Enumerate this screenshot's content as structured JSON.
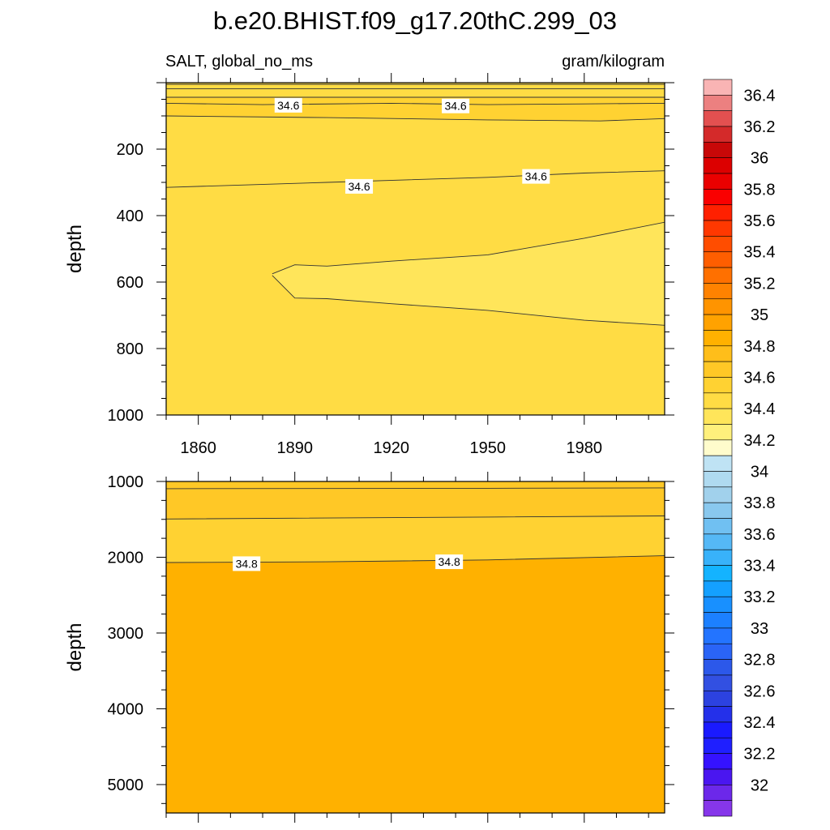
{
  "title": "b.e20.BHIST.f09_g17.20thC.299_03",
  "left_string": "SALT, global_no_ms",
  "right_string": "gram/kilogram",
  "chart_data": [
    {
      "type": "heatmap",
      "panel": "upper",
      "ylabel": "depth",
      "xlabel": "",
      "x_ticks": [
        1860,
        1890,
        1920,
        1950,
        1980
      ],
      "xlim": [
        1850,
        2005
      ],
      "y_ticks": [
        200,
        400,
        600,
        800,
        1000
      ],
      "ylim": [
        0,
        1000
      ],
      "y_inverted": true,
      "bands": [
        {
          "z": 34.45,
          "x": [
            1850,
            2005
          ],
          "y_top": [
            0,
            0
          ],
          "y_bot": [
            1000,
            1000
          ]
        },
        {
          "z": 34.5,
          "x": [
            1850,
            2005
          ],
          "y_top": [
            0,
            0
          ],
          "y_bot": [
            315,
            265
          ]
        },
        {
          "z": 34.6,
          "x": [
            1850,
            1900,
            1950,
            1985,
            2005
          ],
          "y_top": [
            0,
            0,
            0,
            0,
            0
          ],
          "y_bot": [
            100,
            105,
            112,
            115,
            108
          ]
        },
        {
          "z": 34.5,
          "x": [
            1850,
            2005
          ],
          "y_top": [
            0,
            0
          ],
          "y_bot": [
            44,
            44
          ]
        },
        {
          "z": 34.35,
          "x": [
            1883,
            1890,
            1900,
            1920,
            1950,
            1980,
            2005
          ],
          "y_top": [
            575,
            548,
            552,
            537,
            518,
            468,
            420
          ],
          "y_bot": [
            580,
            648,
            650,
            665,
            685,
            715,
            730
          ]
        }
      ],
      "contours": [
        {
          "level": 34.5,
          "x": [
            1850,
            2005
          ],
          "y": [
            5,
            5
          ]
        },
        {
          "level": 34.5,
          "x": [
            1850,
            2005
          ],
          "y": [
            18,
            18
          ]
        },
        {
          "level": 34.6,
          "x": [
            1850,
            2005
          ],
          "y": [
            44,
            44
          ]
        },
        {
          "level": 34.6,
          "x": [
            1850,
            1880,
            1920,
            1950,
            1980,
            2005
          ],
          "y": [
            62,
            66,
            62,
            66,
            64,
            62
          ]
        },
        {
          "level": 34.6,
          "x": [
            1850,
            1900,
            1950,
            1985,
            2005
          ],
          "y": [
            100,
            105,
            112,
            115,
            108
          ]
        },
        {
          "level": 34.6,
          "x": [
            1850,
            1900,
            1950,
            1980,
            2005
          ],
          "y": [
            315,
            300,
            285,
            272,
            265
          ]
        },
        {
          "level": 34.4,
          "x": [
            1883,
            1890,
            1900,
            1920,
            1950,
            1980,
            2005,
            2005,
            1980,
            1950,
            1920,
            1900,
            1890,
            1883
          ],
          "y": [
            575,
            548,
            552,
            537,
            518,
            468,
            420,
            730,
            715,
            685,
            665,
            650,
            648,
            580
          ]
        }
      ],
      "contour_labels": [
        {
          "text": "34.6",
          "x": 1888,
          "y": 68
        },
        {
          "text": "34.6",
          "x": 1940,
          "y": 70
        },
        {
          "text": "34.6",
          "x": 1910,
          "y": 312
        },
        {
          "text": "34.6",
          "x": 1965,
          "y": 282
        }
      ]
    },
    {
      "type": "heatmap",
      "panel": "lower",
      "ylabel": "depth",
      "xlabel": "",
      "x_ticks": [
        1860,
        1890,
        1920,
        1950,
        1980
      ],
      "xlim": [
        1850,
        2005
      ],
      "y_ticks": [
        1000,
        2000,
        3000,
        4000,
        5000
      ],
      "ylim": [
        1000,
        5375
      ],
      "y_inverted": true,
      "bands": [
        {
          "z": 34.55,
          "x": [
            1850,
            2005
          ],
          "y_top": [
            1000,
            1000
          ],
          "y_bot": [
            5375,
            5375
          ]
        },
        {
          "z": 34.65,
          "x": [
            1850,
            1950,
            2005
          ],
          "y_top": [
            1000,
            1000,
            1000
          ],
          "y_bot": [
            1495,
            1470,
            1455
          ]
        },
        {
          "z": 34.85,
          "x": [
            1850,
            1900,
            1950,
            2005
          ],
          "y_top": [
            2070,
            2060,
            2035,
            1980
          ],
          "y_bot": [
            5375,
            5375,
            5375,
            5375
          ]
        }
      ],
      "contours": [
        {
          "level": 34.6,
          "x": [
            1850,
            1950,
            2005
          ],
          "y": [
            1095,
            1090,
            1085
          ]
        },
        {
          "level": 34.7,
          "x": [
            1850,
            1950,
            2005
          ],
          "y": [
            1495,
            1470,
            1455
          ]
        },
        {
          "level": 34.8,
          "x": [
            1850,
            1900,
            1950,
            2005
          ],
          "y": [
            2070,
            2060,
            2035,
            1980
          ]
        }
      ],
      "contour_labels": [
        {
          "text": "34.8",
          "x": 1875,
          "y": 2085
        },
        {
          "text": "34.8",
          "x": 1938,
          "y": 2060
        }
      ]
    }
  ],
  "colorbar": {
    "labels": [
      "36.4",
      "36.2",
      "36",
      "35.8",
      "35.6",
      "35.4",
      "35.2",
      "35",
      "34.8",
      "34.6",
      "34.4",
      "34.2",
      "34",
      "33.8",
      "33.6",
      "33.4",
      "33.2",
      "33",
      "32.8",
      "32.6",
      "32.4",
      "32.2",
      "32"
    ],
    "levels": [
      36.5,
      36.4,
      36.3,
      36.2,
      36.1,
      36.0,
      35.9,
      35.8,
      35.7,
      35.6,
      35.5,
      35.4,
      35.3,
      35.2,
      35.1,
      35.0,
      34.9,
      34.8,
      34.7,
      34.6,
      34.5,
      34.4,
      34.3,
      34.2,
      34.1,
      34.0,
      33.9,
      33.8,
      33.7,
      33.6,
      33.5,
      33.4,
      33.3,
      33.2,
      33.1,
      33.0,
      32.9,
      32.8,
      32.7,
      32.6,
      32.5,
      32.4,
      32.3,
      32.2,
      32.1,
      32.0,
      31.9
    ],
    "colors": [
      "#f9b4b4",
      "#ec8080",
      "#e35050",
      "#d42a2a",
      "#c80808",
      "#dc0000",
      "#ea0000",
      "#fa0000",
      "#ff2000",
      "#ff3800",
      "#ff4d00",
      "#ff5e00",
      "#ff7000",
      "#ff8200",
      "#ff9400",
      "#ffa200",
      "#ffb100",
      "#ffbe1a",
      "#ffc826",
      "#ffd232",
      "#ffdc44",
      "#ffe55a",
      "#fff07c",
      "#fffccc",
      "#bfe3f4",
      "#afdaf0",
      "#a1d1ec",
      "#89c8ee",
      "#70c0f2",
      "#55b8f6",
      "#38b2fa",
      "#14b3ff",
      "#14a0ff",
      "#1890ff",
      "#1c80ff",
      "#2374ff",
      "#2a64f6",
      "#2c58ea",
      "#3250e2",
      "#2c42e0",
      "#2430ea",
      "#1a1aff",
      "#1f1fff",
      "#3512ff",
      "#4a16f0",
      "#6c28ea",
      "#8636ea"
    ]
  }
}
